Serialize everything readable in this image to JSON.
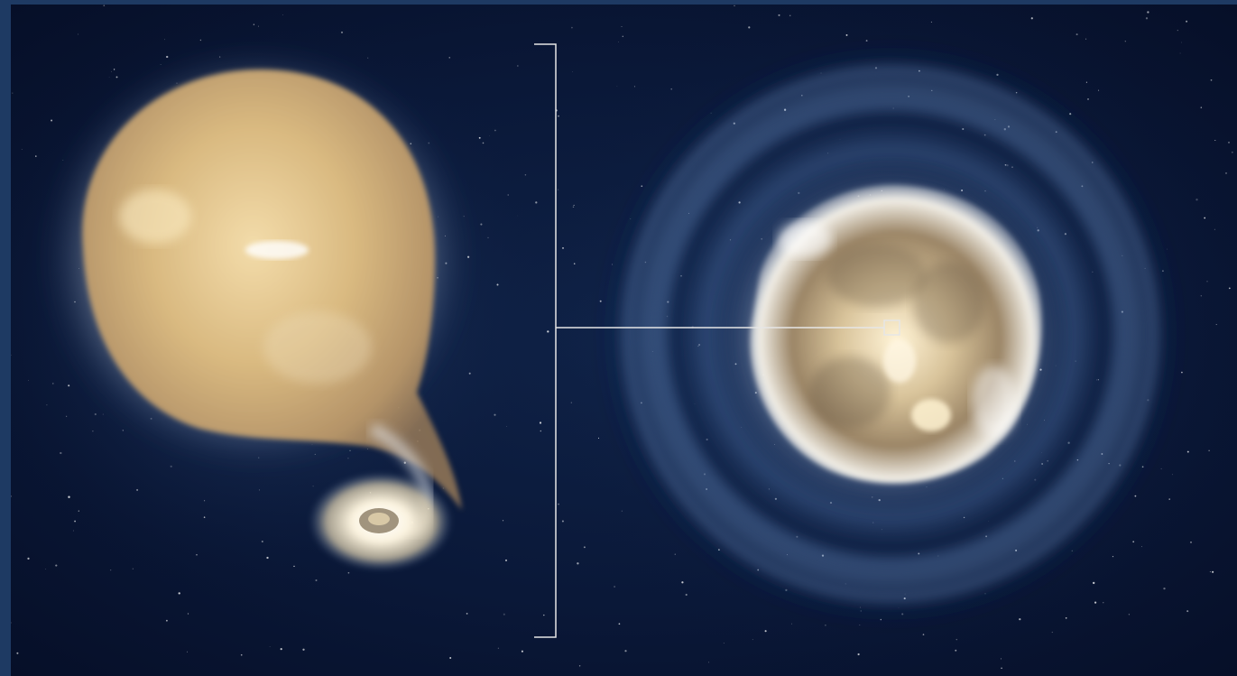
{
  "image": {
    "subject_left": "red-giant-with-white-dwarf-companion",
    "subject_right": "supernova-explosion-with-shell-rings",
    "annotation": "bracket-callout-to-supernova-core"
  },
  "colors": {
    "frame": "#1e3a63",
    "space_dark": "#060f28",
    "space_mid": "#0f2247",
    "giant_core": "#e8c98f",
    "giant_edge": "#a88a5c",
    "glow_white": "#f4f2ec",
    "ring_blue": "#6f95c8",
    "bracket_line": "#e6e6e6"
  }
}
